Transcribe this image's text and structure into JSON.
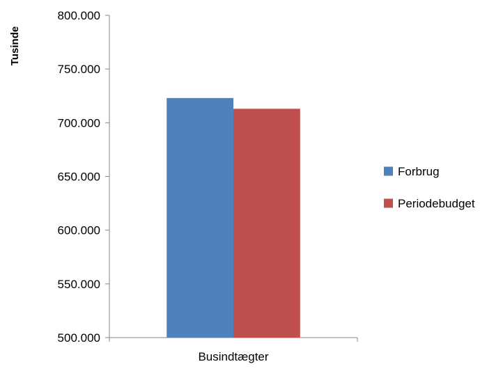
{
  "chart_data": {
    "type": "bar",
    "categories": [
      "Busindtægter"
    ],
    "series": [
      {
        "name": "Forbrug",
        "values": [
          723000
        ],
        "color": "#4F81BD"
      },
      {
        "name": "Periodebudget",
        "values": [
          713000
        ],
        "color": "#C0504D"
      }
    ],
    "ylabel": "Tusinde",
    "xlabel": "",
    "ylim": [
      500000,
      800000
    ],
    "yticks": [
      500000,
      550000,
      600000,
      650000,
      700000,
      750000,
      800000
    ],
    "ytick_labels": [
      "500.000",
      "550.000",
      "600.000",
      "650.000",
      "700.000",
      "750.000",
      "800.000"
    ],
    "grid": false,
    "legend_position": "right"
  }
}
